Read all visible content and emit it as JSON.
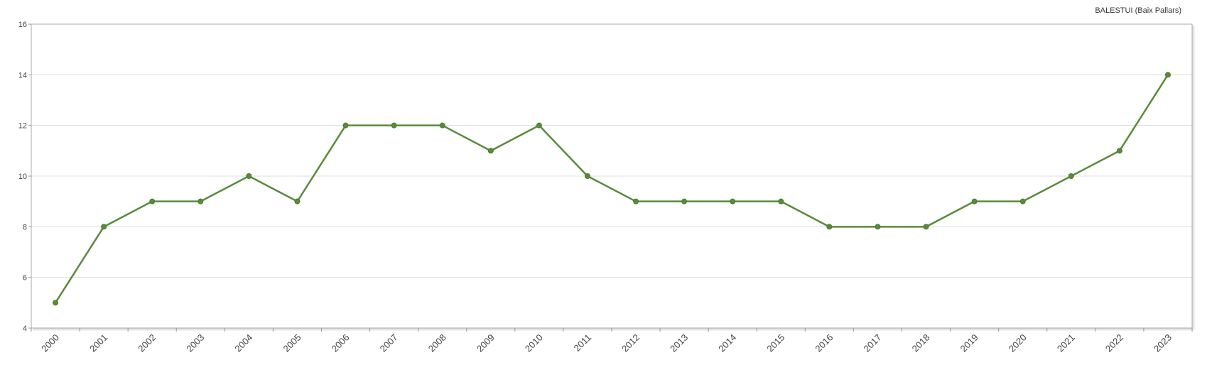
{
  "chart_data": {
    "type": "line",
    "subtitle": "BALESTUI (Baix Pallars)",
    "categories": [
      "2000",
      "2001",
      "2002",
      "2003",
      "2004",
      "2005",
      "2006",
      "2007",
      "2008",
      "2009",
      "2010",
      "2011",
      "2012",
      "2013",
      "2014",
      "2015",
      "2016",
      "2017",
      "2018",
      "2019",
      "2020",
      "2021",
      "2022",
      "2023"
    ],
    "series": [
      {
        "values": [
          5,
          8,
          9,
          9,
          10,
          9,
          12,
          12,
          12,
          11,
          12,
          10,
          9,
          9,
          9,
          9,
          8,
          8,
          8,
          9,
          9,
          10,
          11,
          14
        ]
      }
    ],
    "ylim": [
      4,
      16
    ],
    "y_ticks": [
      "4",
      "6",
      "8",
      "10",
      "12",
      "14",
      "16"
    ],
    "grid": true,
    "legend": "none",
    "colors": {
      "line": "#5a8a3c",
      "marker": "#5a8a3c"
    }
  }
}
